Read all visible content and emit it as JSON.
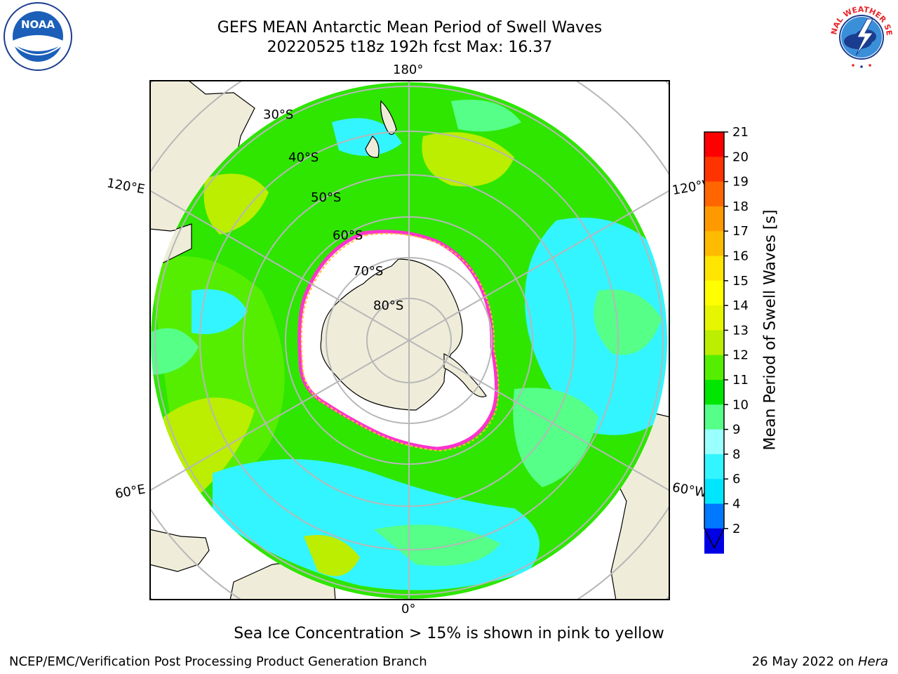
{
  "header": {
    "title_line1": "GEFS MEAN Antarctic Mean Period of Swell Waves",
    "title_line2": "20220525 t18z 192h fcst   Max: 16.37"
  },
  "logos": {
    "left_icon": "noaa-logo-icon",
    "left_text": "NOAA",
    "right_icon": "nws-logo-icon",
    "right_text": "NATIONAL WEATHER SERVICE"
  },
  "map": {
    "projection": "south-polar-stereographic",
    "longitude_labels": {
      "top": "180°",
      "bottom": "0°",
      "upper_left": "120°E",
      "upper_right": "120°W",
      "lower_left": "60°E",
      "lower_right": "60°W"
    },
    "latitude_labels": [
      "30°S",
      "40°S",
      "50°S",
      "60°S",
      "70°S",
      "80°S"
    ],
    "land_color": "#efedda",
    "sea_ice_color": "#ffffff",
    "ice_edge_colors": [
      "#ff33cc",
      "#ff9933",
      "#ffcc33"
    ]
  },
  "colorbar": {
    "label": "Mean Period of Swell Waves [s]",
    "ticks": [
      "2",
      "4",
      "6",
      "8",
      "9",
      "10",
      "11",
      "12",
      "13",
      "14",
      "15",
      "16",
      "17",
      "18",
      "19",
      "20",
      "21"
    ],
    "colors": [
      "#0000e6",
      "#0078ff",
      "#00e6ff",
      "#33f5ff",
      "#99ffff",
      "#55ff88",
      "#00e600",
      "#55ee00",
      "#bbee00",
      "#e6f500",
      "#ffff00",
      "#ffe600",
      "#ffbb00",
      "#ff9900",
      "#ff6600",
      "#ff3300",
      "#ff0000"
    ],
    "extend": "min"
  },
  "notes": {
    "ice": "Sea Ice Concentration > 15% is shown in pink to yellow"
  },
  "footer": {
    "left": "NCEP/EMC/Verification Post Processing Product Generation Branch",
    "right_date": "26 May 2022 on ",
    "right_machine": "Hera"
  }
}
